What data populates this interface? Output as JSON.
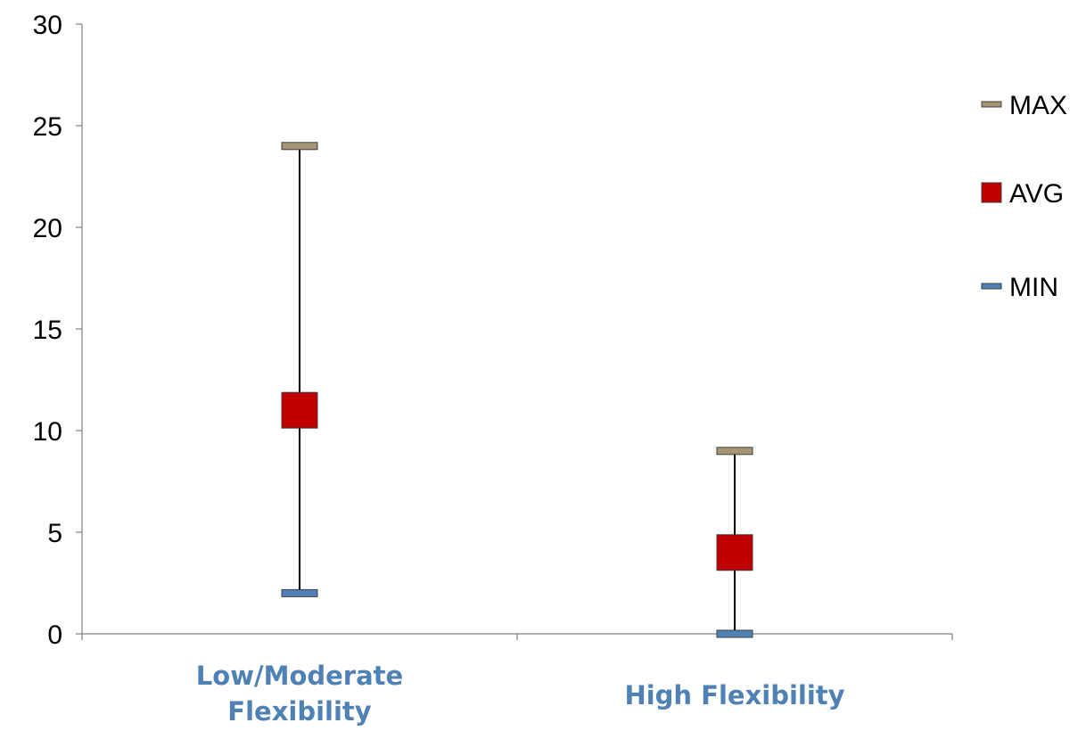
{
  "chart_data": {
    "type": "scatter",
    "title": "",
    "xlabel": "",
    "ylabel": "",
    "ylim": [
      0,
      30
    ],
    "yticks": [
      "0",
      "5",
      "10",
      "15",
      "20",
      "25",
      "30"
    ],
    "categories": [
      {
        "lines": [
          "Low/Moderate",
          "Flexibility"
        ]
      },
      {
        "lines": [
          "High Flexibility"
        ]
      }
    ],
    "series": [
      {
        "name": "MAX",
        "values": [
          24,
          9
        ],
        "color": "#a59572",
        "marker": "dash"
      },
      {
        "name": "AVG",
        "values": [
          11,
          4
        ],
        "color": "#c00000",
        "marker": "square"
      },
      {
        "name": "MIN",
        "values": [
          2,
          0
        ],
        "color": "#4f81b4",
        "marker": "dash"
      }
    ],
    "range_line_color": "#000000",
    "category_label_color": "#4f81b4",
    "legend_position": "right",
    "grid": false
  }
}
